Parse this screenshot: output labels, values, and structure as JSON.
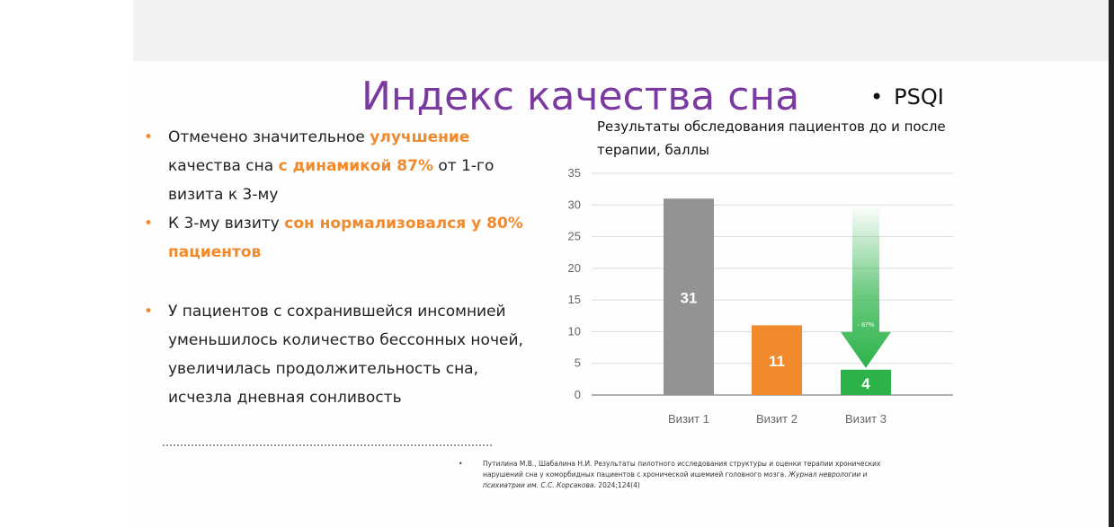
{
  "slide": {
    "title": "Индекс качества сна",
    "tag": {
      "marker": "•",
      "label": "PSQI"
    }
  },
  "bullets": [
    {
      "marker": "•",
      "parts": [
        {
          "text": "Отмечено значительное ",
          "highlight": false
        },
        {
          "text": "улучшение",
          "highlight": true
        },
        {
          "text": " качества сна ",
          "highlight": false
        },
        {
          "text": "с динамикой 87%",
          "highlight": true
        },
        {
          "text": " от 1-го визита к 3-му",
          "highlight": false
        }
      ]
    },
    {
      "marker": "•",
      "parts": [
        {
          "text": "К 3-му визиту ",
          "highlight": false
        },
        {
          "text": "сон нормализовался у 80% пациентов",
          "highlight": true
        }
      ]
    },
    {
      "marker": "•",
      "parts": [
        {
          "text": "У пациентов с сохранившейся инсомнией уменьшилось количество бессонных ночей, увеличилась продолжительность сна, исчезла дневная сонливость",
          "highlight": false
        }
      ]
    }
  ],
  "chart_data": {
    "type": "bar",
    "title": "Результаты обследования пациентов до и после терапии, баллы",
    "categories": [
      "Визит 1",
      "Визит 2",
      "Визит 3"
    ],
    "values": [
      31,
      11,
      4
    ],
    "data_labels": [
      "31",
      "11",
      "4"
    ],
    "bar_colors": [
      "#939393",
      "#f08a2c",
      "#2db34a"
    ],
    "ylim": [
      0,
      35
    ],
    "yticks": [
      0,
      5,
      10,
      15,
      20,
      25,
      30,
      35
    ],
    "grid": true,
    "legend": "none",
    "annotation": {
      "label": "- 87%",
      "category": "Визит 3",
      "from_value": 30,
      "to_value": 4,
      "color": "#2db34a"
    }
  },
  "reference": {
    "marker": "•",
    "text_plain": "Путилина М.В., Шабалина Н.И. Результаты пилотного исследования структуры и оценки терапии хронических нарушений сна у коморбидных пациентов с хронической ишемией головного мозга. ",
    "text_italic": "Журнал неврологии и психиатрии им. С.С. Корсакова.",
    "text_tail": " 2024;124(4)"
  },
  "colors": {
    "title": "#7a3aa0",
    "accent": "#f08a2c",
    "text": "#222222"
  }
}
